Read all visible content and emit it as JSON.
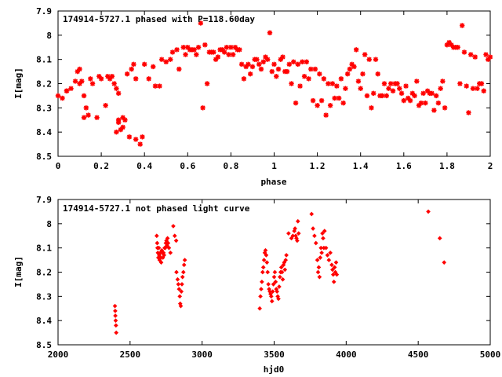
{
  "chart_data": [
    {
      "type": "scatter",
      "title": "174914-5727.1 phased with P=118.60day",
      "xlabel": "phase",
      "ylabel": "I[mag]",
      "xlim": [
        0,
        2
      ],
      "ylim": [
        8.5,
        7.9
      ],
      "y_inverted": true,
      "xticks": [
        "0",
        "0.2",
        "0.4",
        "0.6",
        "0.8",
        "1",
        "1.2",
        "1.4",
        "1.6",
        "1.8",
        "2"
      ],
      "yticks": [
        "7.9",
        "8",
        "8.1",
        "8.2",
        "8.3",
        "8.4",
        "8.5"
      ],
      "grid": false,
      "marker": "star",
      "color": "#ff0000",
      "x": [
        0.0,
        0.02,
        0.04,
        0.1,
        0.1,
        0.12,
        0.13,
        0.12,
        0.14,
        0.15,
        0.16,
        0.18,
        0.2,
        0.22,
        0.24,
        0.26,
        0.27,
        0.28,
        0.29,
        0.3,
        0.28,
        0.27,
        0.28,
        0.3,
        0.32,
        0.34,
        0.35,
        0.36,
        0.33,
        0.36,
        0.38,
        0.4,
        0.42,
        0.45,
        0.48,
        0.5,
        0.53,
        0.55,
        0.58,
        0.6,
        0.62,
        0.64,
        0.66,
        0.67,
        0.69,
        0.7,
        0.71,
        0.73,
        0.75,
        0.77,
        0.79,
        0.8,
        0.82,
        0.84,
        0.86,
        0.88,
        0.9,
        0.92,
        0.93,
        0.95,
        0.96,
        0.97,
        0.98,
        1.0,
        1.02,
        1.04,
        1.06,
        1.08,
        1.1,
        1.12,
        1.14,
        1.16,
        1.18,
        1.2,
        1.22,
        1.24,
        1.26,
        1.28,
        1.3,
        1.32,
        1.33,
        1.34,
        1.36,
        1.38,
        1.4,
        1.42,
        1.44,
        1.46,
        1.48,
        1.5,
        1.52,
        1.54,
        1.56,
        1.58,
        1.6,
        1.62,
        1.64,
        1.66,
        1.68,
        1.7,
        1.72,
        1.74,
        1.76,
        1.78,
        1.8,
        1.82,
        1.84,
        1.86,
        1.87,
        1.88,
        1.9,
        1.92,
        1.94,
        1.96,
        1.98,
        2.0,
        0.04,
        0.06,
        0.08,
        0.09,
        0.11,
        0.19,
        0.23,
        0.25,
        0.31,
        0.39,
        0.44,
        0.47,
        0.52,
        0.56,
        0.59,
        0.61,
        0.63,
        0.65,
        0.68,
        0.72,
        0.74,
        0.76,
        0.78,
        0.81,
        0.83,
        0.85,
        0.87,
        0.89,
        0.91,
        0.94,
        0.99,
        1.01,
        1.03,
        1.05,
        1.07,
        1.09,
        1.11,
        1.13,
        1.15,
        1.17,
        1.19,
        1.21,
        1.23,
        1.25,
        1.27,
        1.29,
        1.31,
        1.35,
        1.37,
        1.39,
        1.41,
        1.43,
        1.45,
        1.47,
        1.49,
        1.51,
        1.53,
        1.55,
        1.57,
        1.59,
        1.61,
        1.63,
        1.65,
        1.67,
        1.69,
        1.71,
        1.73,
        1.75,
        1.77,
        1.79,
        1.81,
        1.83,
        1.85,
        1.89,
        1.91,
        1.93,
        1.95,
        1.97,
        1.99
      ],
      "y": [
        8.25,
        8.26,
        8.23,
        8.2,
        8.14,
        8.25,
        8.3,
        8.34,
        8.33,
        8.18,
        8.2,
        8.34,
        8.18,
        8.29,
        8.18,
        8.2,
        8.22,
        8.24,
        8.39,
        8.38,
        8.36,
        8.4,
        8.35,
        8.34,
        8.16,
        8.14,
        8.12,
        8.18,
        8.42,
        8.43,
        8.45,
        8.12,
        8.18,
        8.21,
        8.1,
        8.11,
        8.07,
        8.06,
        8.05,
        8.05,
        8.06,
        8.08,
        7.95,
        8.3,
        8.2,
        8.07,
        8.07,
        8.1,
        8.06,
        8.07,
        8.08,
        8.05,
        8.05,
        8.06,
        8.18,
        8.12,
        8.13,
        8.1,
        8.12,
        8.11,
        8.09,
        8.1,
        7.99,
        8.12,
        8.14,
        8.09,
        8.15,
        8.2,
        8.28,
        8.21,
        8.17,
        8.18,
        8.27,
        8.29,
        8.27,
        8.33,
        8.29,
        8.26,
        8.26,
        8.28,
        8.22,
        8.16,
        8.12,
        8.06,
        8.22,
        8.08,
        8.1,
        8.24,
        8.16,
        8.25,
        8.25,
        8.2,
        8.2,
        8.22,
        8.27,
        8.26,
        8.24,
        8.19,
        8.28,
        8.28,
        8.24,
        8.31,
        8.28,
        8.19,
        8.04,
        8.04,
        8.05,
        8.2,
        7.96,
        8.07,
        8.32,
        8.22,
        8.22,
        8.2,
        8.08,
        8.09,
        8.23,
        8.22,
        8.19,
        8.15,
        8.19,
        8.17,
        8.17,
        8.17,
        8.35,
        8.42,
        8.13,
        8.21,
        8.1,
        8.14,
        8.08,
        8.06,
        8.06,
        8.05,
        8.04,
        8.07,
        8.09,
        8.06,
        8.05,
        8.08,
        8.06,
        8.12,
        8.13,
        8.16,
        8.1,
        8.14,
        8.15,
        8.17,
        8.1,
        8.15,
        8.12,
        8.11,
        8.12,
        8.11,
        8.11,
        8.14,
        8.14,
        8.16,
        8.18,
        8.2,
        8.2,
        8.21,
        8.18,
        8.14,
        8.13,
        8.19,
        8.16,
        8.25,
        8.3,
        8.1,
        8.25,
        8.2,
        8.22,
        8.23,
        8.2,
        8.24,
        8.21,
        8.27,
        8.25,
        8.29,
        8.24,
        8.23,
        8.24,
        8.25,
        8.22,
        8.3,
        8.03,
        8.05,
        8.05,
        8.21,
        8.08,
        8.09,
        8.2,
        8.23,
        8.1
      ]
    },
    {
      "type": "scatter",
      "title": "174914-5727.1 not phased light curve",
      "xlabel": "hjd0",
      "ylabel": "I[mag]",
      "xlim": [
        2000,
        5000
      ],
      "ylim": [
        8.5,
        7.9
      ],
      "y_inverted": true,
      "xticks": [
        "2000",
        "2500",
        "3000",
        "3500",
        "4000",
        "4500",
        "5000"
      ],
      "yticks": [
        "7.9",
        "8",
        "8.1",
        "8.2",
        "8.3",
        "8.4",
        "8.5"
      ],
      "grid": false,
      "marker": "diamond",
      "color": "#ff0000",
      "x": [
        2395,
        2397,
        2398,
        2400,
        2402,
        2404,
        2685,
        2688,
        2690,
        2693,
        2696,
        2700,
        2702,
        2705,
        2710,
        2713,
        2716,
        2720,
        2724,
        2728,
        2732,
        2736,
        2740,
        2744,
        2748,
        2752,
        2756,
        2760,
        2764,
        2770,
        2780,
        2800,
        2810,
        2820,
        2822,
        2830,
        2835,
        2840,
        2845,
        2848,
        2852,
        2856,
        2860,
        2864,
        2870,
        2875,
        2880,
        3400,
        3405,
        3410,
        3415,
        3420,
        3425,
        3430,
        3435,
        3440,
        3445,
        3450,
        3455,
        3460,
        3465,
        3470,
        3475,
        3480,
        3485,
        3490,
        3495,
        3500,
        3505,
        3510,
        3515,
        3520,
        3525,
        3530,
        3535,
        3540,
        3545,
        3550,
        3555,
        3560,
        3565,
        3570,
        3575,
        3580,
        3585,
        3600,
        3620,
        3630,
        3640,
        3645,
        3650,
        3655,
        3660,
        3665,
        3670,
        3760,
        3770,
        3780,
        3790,
        3800,
        3805,
        3810,
        3815,
        3820,
        3825,
        3830,
        3835,
        3840,
        3845,
        3850,
        3860,
        3870,
        3880,
        3890,
        3900,
        3905,
        3910,
        3915,
        3920,
        3925,
        3930,
        3935,
        4570,
        4650,
        4680
      ],
      "y": [
        8.34,
        8.36,
        8.38,
        8.4,
        8.42,
        8.45,
        8.05,
        8.08,
        8.1,
        8.12,
        8.14,
        8.1,
        8.13,
        8.15,
        8.12,
        8.14,
        8.16,
        8.11,
        8.12,
        8.14,
        8.12,
        8.13,
        8.1,
        8.1,
        8.08,
        8.07,
        8.09,
        8.06,
        8.08,
        8.1,
        8.12,
        8.01,
        8.05,
        8.07,
        8.2,
        8.23,
        8.25,
        8.27,
        8.3,
        8.33,
        8.34,
        8.28,
        8.25,
        8.22,
        8.2,
        8.17,
        8.15,
        8.35,
        8.3,
        8.27,
        8.24,
        8.2,
        8.18,
        8.15,
        8.12,
        8.11,
        8.13,
        8.16,
        8.2,
        8.25,
        8.27,
        8.28,
        8.29,
        8.3,
        8.32,
        8.28,
        8.25,
        8.22,
        8.2,
        8.24,
        8.27,
        8.28,
        8.3,
        8.31,
        8.26,
        8.22,
        8.2,
        8.18,
        8.2,
        8.23,
        8.17,
        8.16,
        8.19,
        8.15,
        8.13,
        8.04,
        8.06,
        8.05,
        8.03,
        8.02,
        8.05,
        8.06,
        8.07,
        7.99,
        8.04,
        7.96,
        8.02,
        8.05,
        8.08,
        8.15,
        8.2,
        8.18,
        8.22,
        8.14,
        8.1,
        8.12,
        8.04,
        8.06,
        8.1,
        8.03,
        8.1,
        8.13,
        8.15,
        8.12,
        8.17,
        8.19,
        8.21,
        8.24,
        8.18,
        8.2,
        8.16,
        8.21,
        7.95,
        8.06,
        8.16
      ]
    }
  ]
}
